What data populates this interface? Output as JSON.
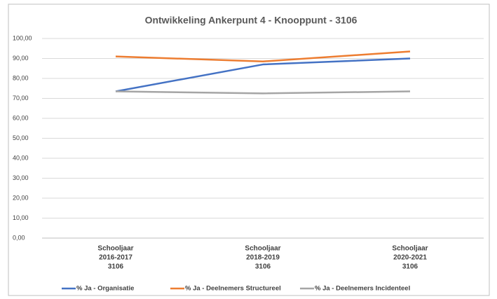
{
  "chart_data": {
    "type": "line",
    "title": "Ontwikkeling Ankerpunt 4 - Knooppunt - 3106",
    "categories": [
      [
        "Schooljaar",
        "2016-2017",
        "3106"
      ],
      [
        "Schooljaar",
        "2018-2019",
        "3106"
      ],
      [
        "Schooljaar",
        "2020-2021",
        "3106"
      ]
    ],
    "series": [
      {
        "name": "% Ja - Organisatie",
        "color": "#4472c4",
        "values": [
          73.5,
          87,
          90
        ]
      },
      {
        "name": "% Ja - Deelnemers Structureel",
        "color": "#ed7d31",
        "values": [
          91,
          88.5,
          93.5
        ]
      },
      {
        "name": "% Ja - Deelnemers Incidenteel",
        "color": "#a5a5a5",
        "values": [
          73.5,
          72.5,
          73.5
        ]
      }
    ],
    "ylim": [
      0,
      100
    ],
    "yticks": [
      {
        "value": 0,
        "label": "0,00"
      },
      {
        "value": 10,
        "label": "10,00"
      },
      {
        "value": 20,
        "label": "20,00"
      },
      {
        "value": 30,
        "label": "30,00"
      },
      {
        "value": 40,
        "label": "40,00"
      },
      {
        "value": 50,
        "label": "50,00"
      },
      {
        "value": 60,
        "label": "60,00"
      },
      {
        "value": 70,
        "label": "70,00"
      },
      {
        "value": 80,
        "label": "80,00"
      },
      {
        "value": 90,
        "label": "90,00"
      },
      {
        "value": 100,
        "label": "100,00"
      }
    ],
    "grid": true,
    "legend": "bottom"
  }
}
